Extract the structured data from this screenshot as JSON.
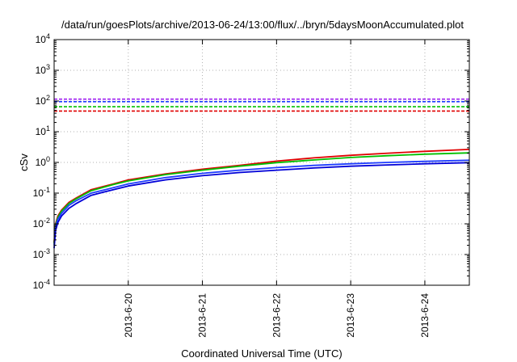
{
  "chart_data": {
    "type": "line",
    "title": "/data/run/goesPlots/archive/2013-06-24/13:00/flux/../bryn/5daysMoonAccumulated.plot",
    "xlabel": "Coordinated Universal Time (UTC)",
    "ylabel": "cSv",
    "yscale": "log",
    "ylim": [
      0.0001,
      10000
    ],
    "xlim": [
      0,
      5.6
    ],
    "grid": true,
    "legend": "none",
    "y_ticks": [
      {
        "value": 0.0001,
        "base": "10",
        "exp": "-4"
      },
      {
        "value": 0.001,
        "base": "10",
        "exp": "-3"
      },
      {
        "value": 0.01,
        "base": "10",
        "exp": "-2"
      },
      {
        "value": 0.1,
        "base": "10",
        "exp": "-1"
      },
      {
        "value": 1,
        "base": "10",
        "exp": "0"
      },
      {
        "value": 10,
        "base": "10",
        "exp": "1"
      },
      {
        "value": 100,
        "base": "10",
        "exp": "2"
      },
      {
        "value": 1000,
        "base": "10",
        "exp": "3"
      },
      {
        "value": 10000,
        "base": "10",
        "exp": "4"
      }
    ],
    "x_ticks": [
      {
        "value": 1,
        "label": "2013-6-20"
      },
      {
        "value": 2,
        "label": "2013-6-21"
      },
      {
        "value": 3,
        "label": "2013-6-22"
      },
      {
        "value": 4,
        "label": "2013-6-23"
      },
      {
        "value": 5,
        "label": "2013-6-24"
      }
    ],
    "thresholds": [
      {
        "color": "#a020f0",
        "value": 115
      },
      {
        "color": "#1e3cff",
        "value": 95
      },
      {
        "color": "#00c000",
        "value": 65
      },
      {
        "color": "#e00000",
        "value": 47
      }
    ],
    "series": [
      {
        "color": "#e00000",
        "x": [
          0,
          0.02,
          0.05,
          0.1,
          0.2,
          0.3,
          0.5,
          0.8,
          1.0,
          1.5,
          2.0,
          2.5,
          3.0,
          3.5,
          4.0,
          4.5,
          5.0,
          5.6
        ],
        "y": [
          0.0025,
          0.01,
          0.018,
          0.028,
          0.05,
          0.07,
          0.13,
          0.2,
          0.27,
          0.42,
          0.6,
          0.8,
          1.1,
          1.4,
          1.7,
          2.0,
          2.3,
          2.65
        ]
      },
      {
        "color": "#00c000",
        "x": [
          0,
          0.02,
          0.05,
          0.1,
          0.2,
          0.3,
          0.5,
          0.8,
          1.0,
          1.5,
          2.0,
          2.5,
          3.0,
          3.5,
          4.0,
          4.5,
          5.0,
          5.6
        ],
        "y": [
          0.0023,
          0.009,
          0.016,
          0.026,
          0.046,
          0.066,
          0.12,
          0.19,
          0.25,
          0.4,
          0.56,
          0.75,
          0.98,
          1.2,
          1.45,
          1.65,
          1.85,
          2.05
        ]
      },
      {
        "color": "#1e3cff",
        "x": [
          0,
          0.02,
          0.05,
          0.1,
          0.2,
          0.3,
          0.5,
          0.8,
          1.0,
          1.5,
          2.0,
          2.5,
          3.0,
          3.5,
          4.0,
          4.5,
          5.0,
          5.6
        ],
        "y": [
          0.002,
          0.008,
          0.014,
          0.022,
          0.04,
          0.057,
          0.1,
          0.15,
          0.2,
          0.32,
          0.44,
          0.56,
          0.68,
          0.8,
          0.9,
          1.0,
          1.08,
          1.18
        ]
      },
      {
        "color": "#0000d8",
        "x": [
          0,
          0.02,
          0.05,
          0.1,
          0.2,
          0.3,
          0.5,
          0.8,
          1.0,
          1.5,
          2.0,
          2.5,
          3.0,
          3.5,
          4.0,
          4.5,
          5.0,
          5.6
        ],
        "y": [
          0.0016,
          0.006,
          0.011,
          0.018,
          0.032,
          0.046,
          0.085,
          0.13,
          0.17,
          0.27,
          0.37,
          0.47,
          0.56,
          0.66,
          0.75,
          0.83,
          0.9,
          0.98
        ]
      }
    ]
  }
}
